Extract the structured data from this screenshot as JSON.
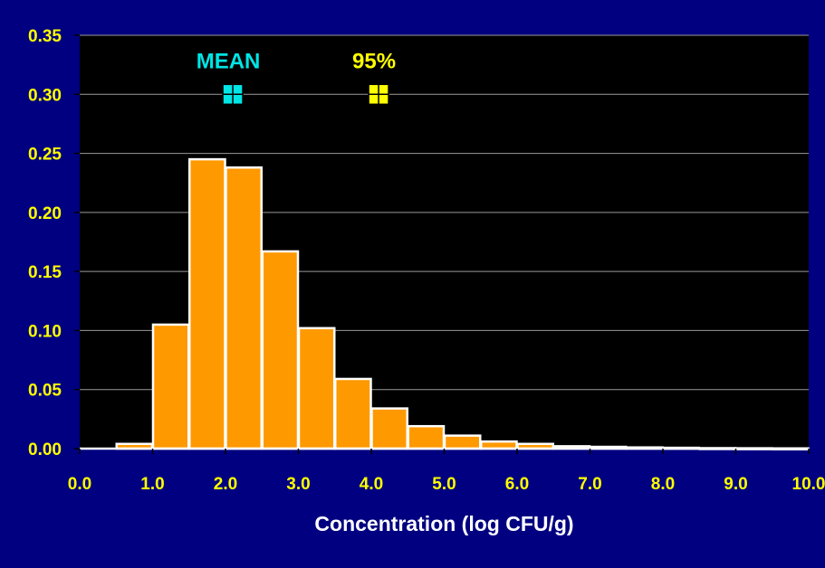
{
  "colors": {
    "background": "#000080",
    "plot_area": "#000000",
    "bar_fill": "#FF9900",
    "bar_stroke": "#FFFFFF",
    "tick_text": "#FFFF00",
    "axis_title": "#FFFFFF",
    "gridline": "#9A9A9A"
  },
  "chart_data": {
    "type": "bar",
    "title": "",
    "xlabel": "Concentration (log CFU/g)",
    "ylabel": "",
    "xlim": [
      0,
      10
    ],
    "ylim": [
      0,
      0.35
    ],
    "grid": "horizontal",
    "x_ticks": [
      "0.0",
      "1.0",
      "2.0",
      "3.0",
      "4.0",
      "5.0",
      "6.0",
      "7.0",
      "8.0",
      "9.0",
      "10.0"
    ],
    "y_ticks": [
      "0.00",
      "0.05",
      "0.10",
      "0.15",
      "0.20",
      "0.25",
      "0.30",
      "0.35"
    ],
    "bins": [
      {
        "x0": 0.0,
        "x1": 0.5,
        "value": 0.0
      },
      {
        "x0": 0.5,
        "x1": 1.0,
        "value": 0.004
      },
      {
        "x0": 1.0,
        "x1": 1.5,
        "value": 0.105
      },
      {
        "x0": 1.5,
        "x1": 2.0,
        "value": 0.245
      },
      {
        "x0": 2.0,
        "x1": 2.5,
        "value": 0.238
      },
      {
        "x0": 2.5,
        "x1": 3.0,
        "value": 0.167
      },
      {
        "x0": 3.0,
        "x1": 3.5,
        "value": 0.102
      },
      {
        "x0": 3.5,
        "x1": 4.0,
        "value": 0.059
      },
      {
        "x0": 4.0,
        "x1": 4.5,
        "value": 0.034
      },
      {
        "x0": 4.5,
        "x1": 5.0,
        "value": 0.019
      },
      {
        "x0": 5.0,
        "x1": 5.5,
        "value": 0.011
      },
      {
        "x0": 5.5,
        "x1": 6.0,
        "value": 0.006
      },
      {
        "x0": 6.0,
        "x1": 6.5,
        "value": 0.004
      },
      {
        "x0": 6.5,
        "x1": 7.0,
        "value": 0.002
      },
      {
        "x0": 7.0,
        "x1": 7.5,
        "value": 0.0015
      },
      {
        "x0": 7.5,
        "x1": 8.0,
        "value": 0.001
      },
      {
        "x0": 8.0,
        "x1": 8.5,
        "value": 0.0007
      },
      {
        "x0": 8.5,
        "x1": 9.0,
        "value": 0.0004
      },
      {
        "x0": 9.0,
        "x1": 9.5,
        "value": 0.0003
      },
      {
        "x0": 9.5,
        "x1": 10.0,
        "value": 0.0002
      }
    ],
    "markers": [
      {
        "label": "MEAN",
        "x": 2.1,
        "y": 0.3,
        "color": "#00E5E5"
      },
      {
        "label": "95%",
        "x": 4.1,
        "y": 0.3,
        "color": "#FFFF00"
      }
    ]
  }
}
